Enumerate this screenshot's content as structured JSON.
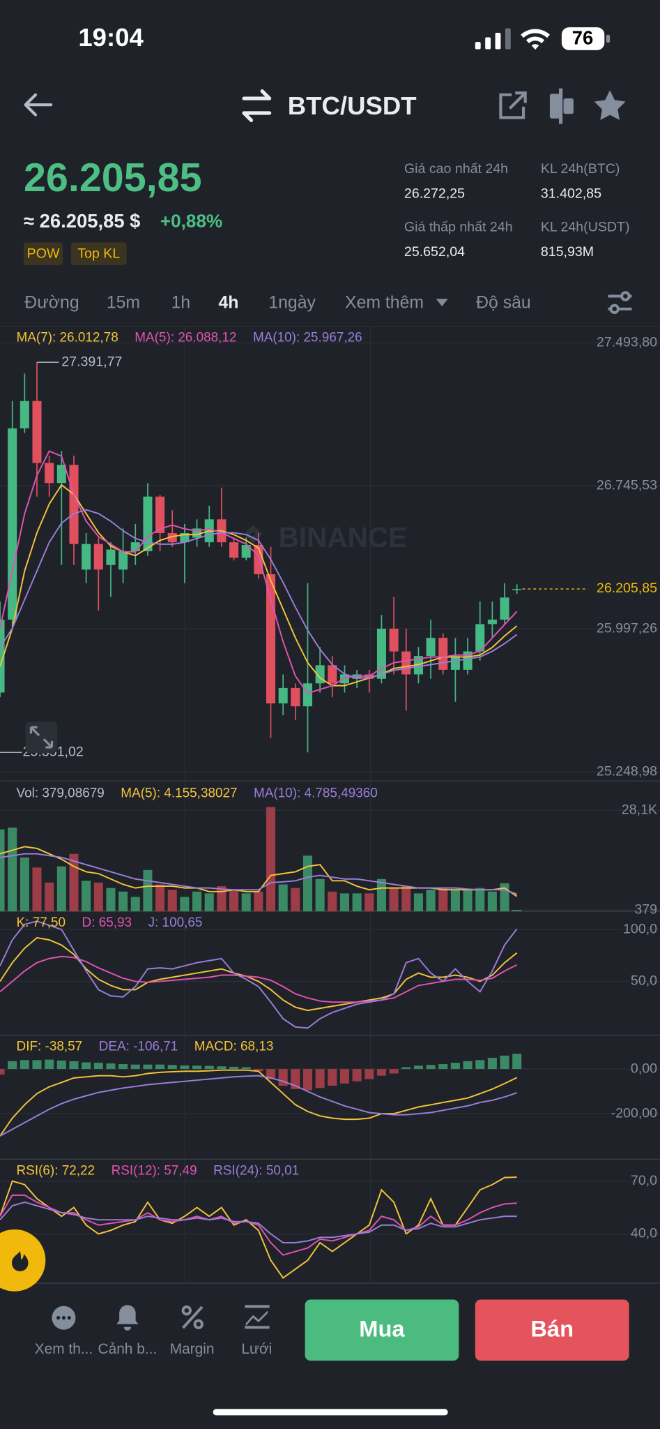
{
  "status_bar": {
    "time": "19:04",
    "battery": "76"
  },
  "header": {
    "pair": "BTC/USDT"
  },
  "ticker": {
    "price": "26.205,85",
    "fiat_price": "≈ 26.205,85 $",
    "change": "+0,88%",
    "tags": [
      "POW",
      "Top KL"
    ],
    "stats": [
      {
        "label": "Giá cao nhất 24h",
        "value": "26.272,25"
      },
      {
        "label": "KL 24h(BTC)",
        "value": "31.402,85"
      },
      {
        "label": "Giá thấp nhất 24h",
        "value": "25.652,04"
      },
      {
        "label": "KL 24h(USDT)",
        "value": "815,93M"
      }
    ]
  },
  "tabs": [
    "Đường",
    "15m",
    "1h",
    "4h",
    "1ngày",
    "Xem thêm",
    "Độ sâu"
  ],
  "watermark": "BINANCE",
  "chart_data": [
    {
      "type": "candlestick",
      "up_color": "#45b884",
      "down_color": "#e0505f",
      "ylim": [
        25201,
        27580
      ],
      "yticks": [
        {
          "value": 27493.8,
          "label": "27.493,80"
        },
        {
          "value": 26745.53,
          "label": "26.745,53"
        },
        {
          "value": 25997.26,
          "label": "25.997,26"
        },
        {
          "value": 25248.98,
          "label": "25.248,98"
        }
      ],
      "open": [
        25664,
        26045,
        27046,
        27189,
        26865,
        26760,
        26855,
        26307,
        26441,
        26331,
        26307,
        26403,
        26403,
        26689,
        26498,
        26450,
        26474,
        26450,
        26570,
        26450,
        26369,
        26436,
        26283,
        25607,
        25688,
        25592,
        25712,
        25807,
        25712,
        25736,
        25759,
        25736,
        25998,
        25879,
        25759,
        25855,
        25950,
        25783,
        25783,
        25879,
        26022,
        26045,
        26200
      ],
      "high": [
        26140,
        27189,
        27332,
        27391.77,
        26903,
        26927,
        26903,
        26498,
        26474,
        26450,
        26522,
        26546,
        26760,
        26698,
        26617,
        26546,
        26570,
        26641,
        26736,
        26474,
        26474,
        26498,
        26426,
        25759,
        25712,
        26236,
        25902,
        25855,
        25807,
        25783,
        25783,
        26069,
        26164,
        25998,
        25902,
        26045,
        25974,
        25950,
        25950,
        26140,
        26140,
        26236,
        26230
      ],
      "low": [
        25640,
        25998,
        27022,
        26689,
        26689,
        26331,
        26331,
        26236,
        26093,
        26164,
        26236,
        26331,
        26379,
        26403,
        26426,
        26236,
        26426,
        26426,
        26426,
        26355,
        26355,
        26260,
        25426,
        25545,
        25521,
        25351.02,
        25664,
        25640,
        25664,
        25688,
        25664,
        25712,
        25759,
        25569,
        25712,
        25736,
        25759,
        25616,
        25759,
        25831,
        25950,
        26022,
        26180
      ],
      "close": [
        26045,
        27046,
        27189,
        26865,
        26760,
        26855,
        26441,
        26441,
        26307,
        26412,
        26403,
        26450,
        26689,
        26498,
        26450,
        26498,
        26522,
        26570,
        26450,
        26369,
        26436,
        26283,
        25607,
        25688,
        25592,
        25712,
        25807,
        25712,
        25759,
        25759,
        25736,
        25998,
        25879,
        25759,
        25855,
        25950,
        25783,
        25855,
        25879,
        26022,
        26045,
        26161,
        26205.85
      ],
      "series": [
        {
          "name": "MA(7): 26.012,78",
          "color": "#f3c33a",
          "values": [
            25800,
            26000,
            26300,
            26500,
            26650,
            26750,
            26700,
            26600,
            26500,
            26430,
            26400,
            26380,
            26420,
            26460,
            26480,
            26490,
            26490,
            26510,
            26510,
            26490,
            26460,
            26420,
            26250,
            26100,
            25950,
            25820,
            25740,
            25700,
            25700,
            25720,
            25740,
            25760,
            25790,
            25800,
            25810,
            25830,
            25850,
            25850,
            25850,
            25860,
            25900,
            25960,
            26012.78
          ]
        },
        {
          "name": "MA(5): 26.088,12",
          "color": "#e052b4",
          "values": [
            26000,
            26300,
            26600,
            26800,
            26927,
            26900,
            26700,
            26560,
            26480,
            26440,
            26400,
            26400,
            26480,
            26520,
            26540,
            26520,
            26510,
            26520,
            26500,
            26470,
            26440,
            26380,
            26150,
            25930,
            25750,
            25660,
            25680,
            25700,
            25740,
            25750,
            25750,
            25790,
            25820,
            25830,
            25840,
            25850,
            25850,
            25860,
            25860,
            25880,
            25950,
            26020,
            26088.12
          ]
        },
        {
          "name": "MA(10): 25.967,26",
          "color": "#9b7cdb",
          "values": [
            25900,
            26000,
            26150,
            26300,
            26450,
            26550,
            26600,
            26620,
            26600,
            26560,
            26510,
            26470,
            26450,
            26440,
            26440,
            26450,
            26470,
            26490,
            26500,
            26500,
            26490,
            26460,
            26360,
            26240,
            26110,
            25990,
            25890,
            25810,
            25760,
            25740,
            25740,
            25760,
            25780,
            25790,
            25800,
            25810,
            25820,
            25830,
            25840,
            25850,
            25880,
            25920,
            25967.26
          ]
        }
      ],
      "high_label": {
        "value": 27391.77,
        "label": "27.391,77"
      },
      "low_label": {
        "value": 25351.02,
        "label": "25.351,02"
      },
      "last_price": {
        "value": 26205.85,
        "label": "26.205,85",
        "color": "#f0b90b"
      }
    },
    {
      "type": "bar",
      "legend": "Vol: 379,08679",
      "up_color": "#3b8a66",
      "down_color": "#9c3d48",
      "ylim": [
        0,
        36000
      ],
      "yticks": [
        {
          "value": 28100,
          "label": "28,1K"
        },
        379
      ],
      "values": [
        22800,
        23300,
        15000,
        12200,
        8000,
        12500,
        16000,
        8500,
        8000,
        6500,
        5500,
        4000,
        11500,
        7500,
        6000,
        4000,
        5500,
        5000,
        7000,
        6000,
        5000,
        5500,
        29000,
        7500,
        6500,
        15500,
        9000,
        5500,
        5000,
        5000,
        5000,
        9000,
        6500,
        7000,
        5000,
        6000,
        6500,
        6000,
        6000,
        6500,
        5500,
        7800,
        379.08679
      ],
      "series": [
        {
          "name": "MA(5): 4.155,38027",
          "color": "#f3c33a",
          "values": [
            16000,
            17000,
            18000,
            17500,
            16000,
            14500,
            12500,
            11000,
            10500,
            9000,
            7500,
            6500,
            7000,
            7000,
            7000,
            6500,
            6500,
            5500,
            5500,
            6000,
            5500,
            5500,
            10000,
            10500,
            11000,
            12500,
            13000,
            8500,
            8500,
            7000,
            6000,
            6500,
            6500,
            6500,
            6500,
            6500,
            6000,
            6000,
            6000,
            6000,
            6000,
            6500,
            4155.38027
          ]
        },
        {
          "name": "MA(10): 4.785,49360",
          "color": "#9b7cdb",
          "values": [
            15000,
            15500,
            16000,
            16000,
            15500,
            15000,
            14000,
            13000,
            12000,
            11000,
            10000,
            9000,
            8500,
            8000,
            7500,
            7000,
            6500,
            6500,
            6200,
            6000,
            6000,
            6000,
            8000,
            8200,
            8500,
            9500,
            10000,
            9500,
            9000,
            9000,
            8500,
            8000,
            7500,
            7000,
            6500,
            6500,
            6500,
            6500,
            6200,
            6000,
            6000,
            6000,
            4785.4936
          ]
        }
      ]
    },
    {
      "type": "line",
      "ylim": [
        -2,
        117.5
      ],
      "yticks": [
        {
          "value": 100,
          "label": "100,0"
        },
        {
          "value": 50,
          "label": "50,0"
        }
      ],
      "series": [
        {
          "name": "K: 77,50",
          "color": "#f3c33a",
          "values": [
            50,
            68,
            82,
            92,
            90,
            85,
            76,
            62,
            52,
            46,
            42,
            42,
            49,
            52,
            54,
            56,
            58,
            60,
            62,
            58,
            55,
            50,
            42,
            32,
            25,
            22,
            24,
            26,
            28,
            30,
            32,
            34,
            38,
            52,
            58,
            54,
            54,
            56,
            54,
            50,
            56,
            68,
            77.5
          ]
        },
        {
          "name": "D: 65,93",
          "color": "#e052b4",
          "values": [
            40,
            50,
            60,
            68,
            72,
            74,
            73,
            69,
            63,
            58,
            53,
            50,
            49,
            50,
            51,
            52,
            53,
            54,
            56,
            56,
            55,
            54,
            51,
            45,
            38,
            34,
            31,
            30,
            30,
            30,
            31,
            32,
            34,
            40,
            46,
            48,
            50,
            52,
            52,
            51,
            53,
            60,
            65.93
          ]
        },
        {
          "name": "J: 100,65",
          "color": "#9b7cdb",
          "values": [
            65,
            90,
            105,
            108,
            104,
            100,
            80,
            60,
            42,
            36,
            35,
            45,
            62,
            63,
            62,
            65,
            68,
            70,
            72,
            58,
            52,
            45,
            30,
            14,
            6,
            5,
            14,
            20,
            24,
            28,
            30,
            32,
            38,
            68,
            72,
            58,
            50,
            62,
            50,
            40,
            60,
            85,
            100.65
          ]
        }
      ]
    },
    {
      "type": "macd",
      "ylim": [
        -404,
        151
      ],
      "yticks": [
        {
          "value": 0,
          "label": "0,00"
        },
        {
          "value": -200,
          "label": "-200,00"
        }
      ],
      "series": [
        {
          "name": "DIF: -38,57",
          "color": "#f3c33a",
          "values": [
            -300,
            -220,
            -160,
            -110,
            -80,
            -60,
            -40,
            -35,
            -30,
            -30,
            -35,
            -30,
            -20,
            -15,
            -12,
            -10,
            -10,
            -8,
            -5,
            -5,
            -5,
            -10,
            -60,
            -110,
            -160,
            -190,
            -210,
            -220,
            -225,
            -225,
            -220,
            -200,
            -200,
            -185,
            -170,
            -160,
            -150,
            -140,
            -130,
            -110,
            -90,
            -65,
            -38.57
          ]
        },
        {
          "name": "DEA: -106,71",
          "color": "#9b7cdb",
          "values": [
            -300,
            -270,
            -240,
            -210,
            -180,
            -155,
            -135,
            -120,
            -105,
            -95,
            -85,
            -78,
            -70,
            -65,
            -60,
            -55,
            -50,
            -45,
            -40,
            -35,
            -32,
            -30,
            -40,
            -55,
            -75,
            -100,
            -125,
            -145,
            -165,
            -180,
            -195,
            -200,
            -205,
            -205,
            -200,
            -195,
            -185,
            -175,
            -165,
            -150,
            -140,
            -125,
            -106.71
          ]
        }
      ],
      "histogram": {
        "name": "MACD: 68,13",
        "color": "#f3c33a",
        "up_color": "#3b8a66",
        "down_color": "#9c3d48",
        "values": [
          -25,
          35,
          40,
          40,
          42,
          38,
          35,
          30,
          28,
          25,
          22,
          20,
          20,
          20,
          18,
          16,
          15,
          14,
          12,
          10,
          8,
          -10,
          -45,
          -75,
          -90,
          -95,
          -85,
          -75,
          -65,
          -55,
          -45,
          -30,
          -20,
          8,
          15,
          18,
          22,
          28,
          35,
          40,
          50,
          60,
          68.13
        ]
      }
    },
    {
      "type": "line",
      "ylim": [
        12,
        82.4
      ],
      "yticks": [
        {
          "value": 70,
          "label": "70,0"
        },
        {
          "value": 40,
          "label": "40,0"
        }
      ],
      "series": [
        {
          "name": "RSI(6): 72,22",
          "color": "#f3c33a",
          "values": [
            50,
            70,
            68,
            60,
            55,
            50,
            55,
            45,
            40,
            42,
            45,
            47,
            58,
            48,
            46,
            50,
            55,
            50,
            55,
            45,
            48,
            42,
            25,
            15,
            20,
            25,
            35,
            30,
            35,
            40,
            45,
            65,
            58,
            40,
            45,
            60,
            45,
            45,
            55,
            65,
            68,
            72,
            72.22
          ]
        },
        {
          "name": "RSI(12): 57,49",
          "color": "#e052b4",
          "values": [
            50,
            62,
            62,
            58,
            55,
            52,
            52,
            48,
            45,
            46,
            47,
            48,
            52,
            48,
            47,
            48,
            50,
            48,
            50,
            46,
            47,
            45,
            35,
            28,
            30,
            32,
            37,
            36,
            38,
            40,
            42,
            50,
            48,
            42,
            44,
            50,
            45,
            45,
            48,
            52,
            55,
            57,
            57.49
          ]
        },
        {
          "name": "RSI(24): 50,01",
          "color": "#9b7cdb",
          "values": [
            48,
            56,
            58,
            56,
            54,
            52,
            51,
            49,
            48,
            48,
            48,
            48,
            50,
            49,
            48,
            48,
            49,
            48,
            49,
            47,
            47,
            46,
            40,
            35,
            35,
            36,
            38,
            38,
            39,
            40,
            41,
            45,
            45,
            42,
            43,
            46,
            44,
            44,
            46,
            48,
            49,
            50,
            50.01
          ]
        }
      ]
    }
  ],
  "bottom_bar": {
    "actions": [
      "Xem th...",
      "Cảnh b...",
      "Margin",
      "Lưới"
    ],
    "buy": "Mua",
    "sell": "Bán"
  }
}
